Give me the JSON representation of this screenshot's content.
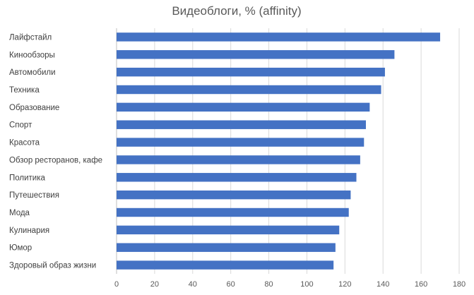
{
  "chart_data": {
    "type": "bar",
    "orientation": "horizontal",
    "title": "Видеоблоги, % (affinity)",
    "xlabel": "",
    "ylabel": "",
    "categories": [
      "Лайфстайл",
      "Кинообзоры",
      "Автомобили",
      "Техника",
      "Образование",
      "Спорт",
      "Красота",
      "Обзор ресторанов, кафе",
      "Политика",
      "Путешествия",
      "Мода",
      "Кулинария",
      "Юмор",
      "Здоровый образ жизни"
    ],
    "values": [
      170,
      146,
      141,
      139,
      133,
      131,
      130,
      128,
      126,
      123,
      122,
      117,
      115,
      114
    ],
    "xlim": [
      0,
      180
    ],
    "xticks": [
      "0",
      "20",
      "40",
      "60",
      "80",
      "100",
      "120",
      "140",
      "160",
      "180"
    ],
    "grid": true,
    "bar_color": "#4472c4",
    "legend": false
  }
}
